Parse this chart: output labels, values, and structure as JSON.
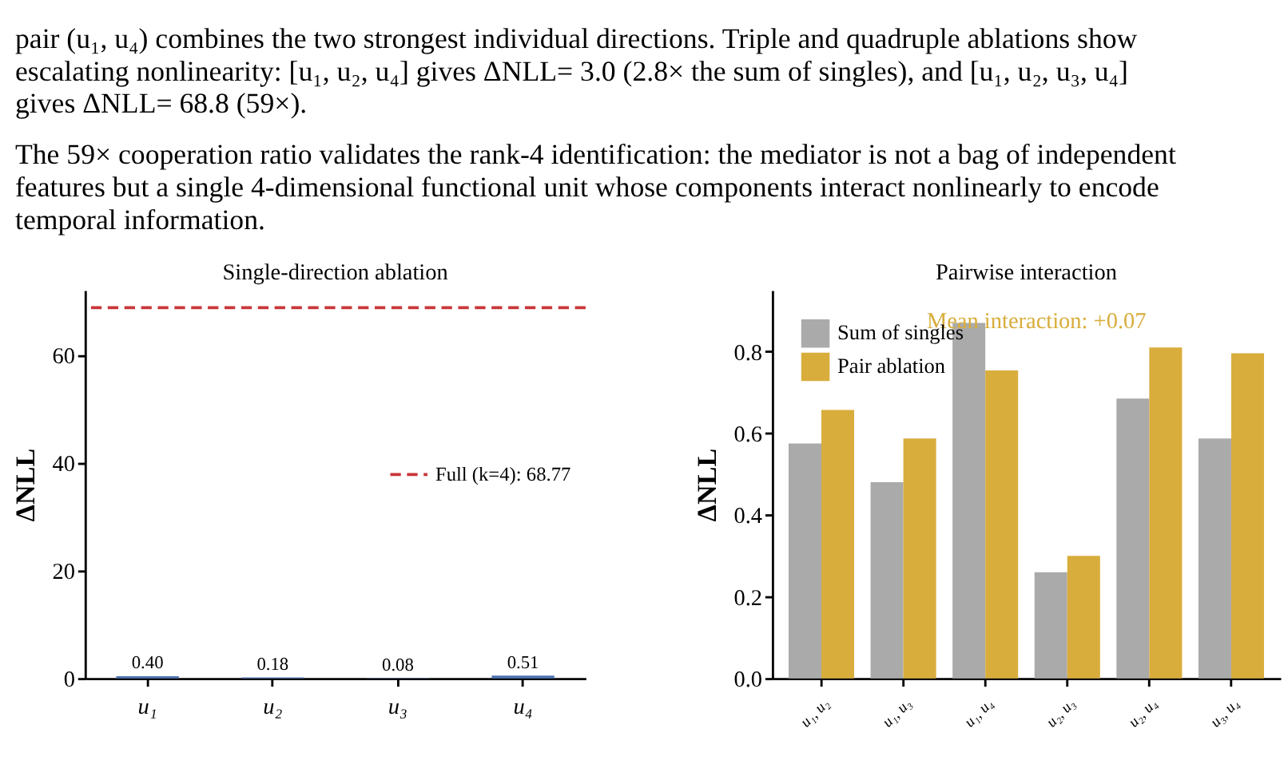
{
  "chart_data": [
    {
      "type": "other",
      "annotations": [
        "pair (u₁, u₄) combines the two strongest individual directions. Triple and quadruple ablations show\nescalating nonlinearity: [u₁, u₂, u₄] gives ΔNLL= 3.0 (2.8× the sum of singles), and [u₁, u₂, u₃, u₄]\ngives ΔNLL= 68.8 (59×).",
        "The 59× cooperation ratio validates the rank-4 identification: the mediator is not a bag of independent\nfeatures but a single 4-dimensional functional unit whose components interact nonlinearly to encode\ntemporal information."
      ]
    },
    {
      "type": "bar",
      "title": "Single-direction ablation",
      "ylabel": "ΔNLL",
      "categories": [
        "u₁",
        "u₂",
        "u₃",
        "u₄"
      ],
      "values": [
        0.4,
        0.18,
        0.08,
        0.51
      ],
      "value_labels": [
        "0.40",
        "0.18",
        "0.08",
        "0.51"
      ],
      "color": "#4c72b0",
      "ylim": [
        0,
        72
      ],
      "yticks": [
        0,
        20,
        40,
        60
      ],
      "grid": false,
      "legend": "right",
      "ref_lines": [
        {
          "axis": "y",
          "value": 68.77,
          "label": "Full (k=4): 68.77",
          "color": "#c8373a",
          "line_style": "dashed"
        }
      ]
    },
    {
      "type": "bar",
      "title": "Pairwise interaction",
      "ylabel": "ΔNLL",
      "categories": [
        "u₁, u₂",
        "u₁, u₃",
        "u₁, u₄",
        "u₂, u₃",
        "u₂, u₄",
        "u₃, u₄"
      ],
      "series": [
        {
          "name": "Sum of singles",
          "color": "#aaaaaa",
          "values": [
            0.575,
            0.48,
            0.87,
            0.26,
            0.685,
            0.587
          ]
        },
        {
          "name": "Pair ablation",
          "color": "#d9ad3c",
          "values": [
            0.657,
            0.587,
            0.754,
            0.3,
            0.81,
            0.796
          ]
        }
      ],
      "ylim": [
        0,
        0.95
      ],
      "yticks": [
        {
          "value": 0,
          "label": "0.0"
        },
        0.2,
        0.4,
        0.6,
        0.8
      ],
      "grid": false,
      "legend": "top left",
      "annotations": [
        "Mean interaction: +0.07"
      ]
    }
  ]
}
